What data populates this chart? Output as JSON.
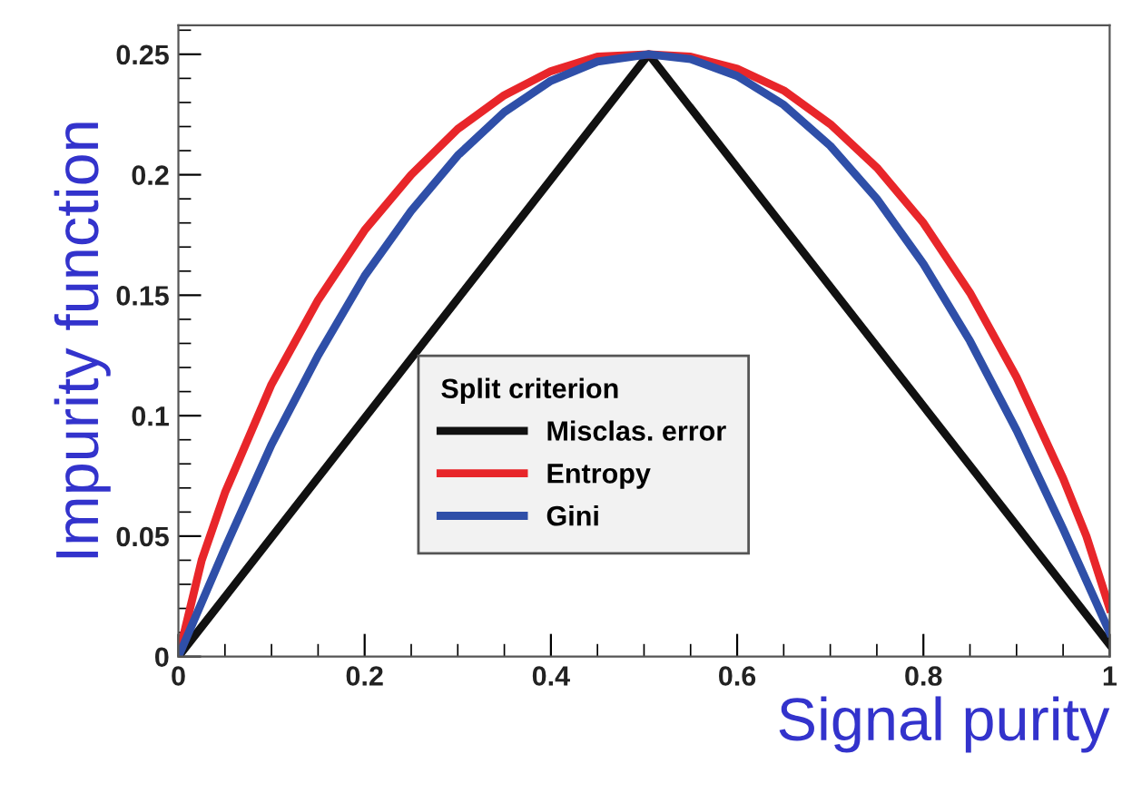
{
  "chart_data": {
    "type": "line",
    "xlabel": "Signal purity",
    "ylabel": "Impurity function",
    "legend_title": "Split criterion",
    "legend": "center",
    "grid": false,
    "marker": "none",
    "line_style": "solid",
    "xlim": [
      0,
      1
    ],
    "ylim": [
      0,
      0.262
    ],
    "xticks": [
      0,
      0.2,
      0.4,
      0.6,
      0.8,
      1
    ],
    "yticks": [
      0,
      0.05,
      0.1,
      0.15,
      0.2,
      0.25
    ],
    "series": [
      {
        "name": "Misclas. error",
        "color": "#111111",
        "x": [
          0,
          0.505,
          1
        ],
        "values": [
          0,
          0.25,
          0.005
        ]
      },
      {
        "name": "Entropy",
        "color": "#e8262a",
        "x": [
          0,
          0.025,
          0.05,
          0.1,
          0.15,
          0.2,
          0.25,
          0.3,
          0.35,
          0.4,
          0.45,
          0.505,
          0.55,
          0.6,
          0.65,
          0.7,
          0.75,
          0.8,
          0.85,
          0.9,
          0.95,
          0.975,
          1
        ],
        "values": [
          0,
          0.04,
          0.068,
          0.113,
          0.148,
          0.177,
          0.2,
          0.219,
          0.233,
          0.243,
          0.249,
          0.25,
          0.249,
          0.244,
          0.235,
          0.221,
          0.203,
          0.18,
          0.151,
          0.116,
          0.074,
          0.05,
          0.02
        ]
      },
      {
        "name": "Gini",
        "color": "#2f4fa8",
        "x": [
          0,
          0.05,
          0.1,
          0.15,
          0.2,
          0.25,
          0.3,
          0.35,
          0.4,
          0.45,
          0.505,
          0.55,
          0.6,
          0.65,
          0.7,
          0.75,
          0.8,
          0.85,
          0.9,
          0.95,
          1
        ],
        "values": [
          0,
          0.045,
          0.088,
          0.125,
          0.158,
          0.185,
          0.208,
          0.226,
          0.239,
          0.247,
          0.25,
          0.248,
          0.241,
          0.229,
          0.212,
          0.19,
          0.163,
          0.131,
          0.094,
          0.053,
          0.01
        ]
      }
    ]
  }
}
